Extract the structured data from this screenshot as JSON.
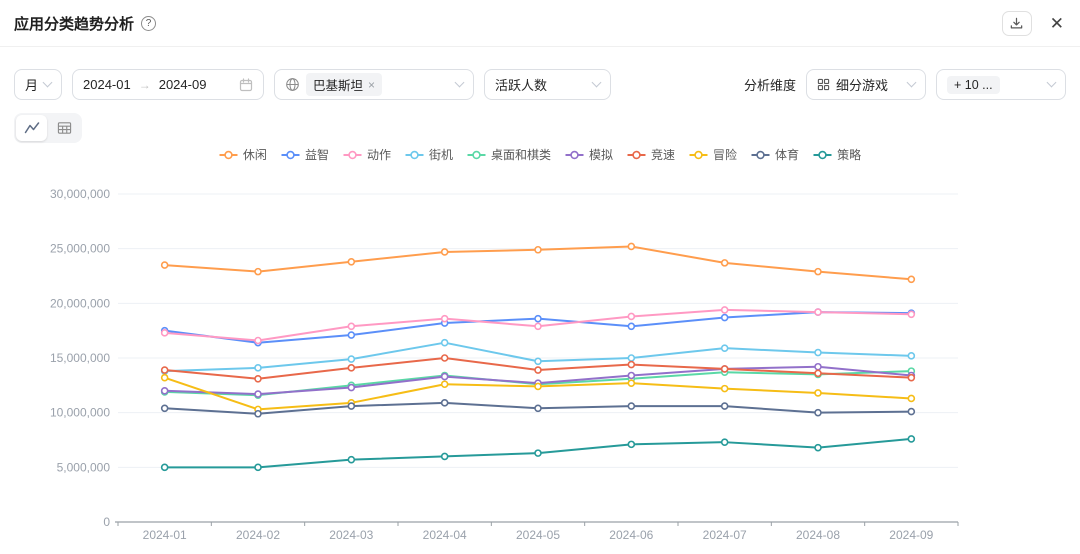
{
  "header": {
    "title": "应用分类趋势分析",
    "help_glyph": "?"
  },
  "icons": {
    "close": "✕",
    "arrow_right": "→",
    "tag_close": "×"
  },
  "filters": {
    "granularity": "月",
    "date_start": "2024-01",
    "date_end": "2024-09",
    "country_tag": "巴基斯坦",
    "metric": "活跃人数",
    "dimension_label": "分析维度",
    "dimension": "细分游戏",
    "selected_count": "+ 10 ..."
  },
  "chart_data": {
    "type": "line",
    "title": "",
    "xlabel": "",
    "ylabel": "",
    "grid": true,
    "legend_position": "top",
    "ylim": [
      0,
      30000000
    ],
    "y_tick_interval": 5000000,
    "categories": [
      "2024-01",
      "2024-02",
      "2024-03",
      "2024-04",
      "2024-05",
      "2024-06",
      "2024-07",
      "2024-08",
      "2024-09"
    ],
    "series": [
      {
        "name": "休闲",
        "color": "#FF9D4D",
        "values": [
          23500000,
          22900000,
          23800000,
          24700000,
          24900000,
          25200000,
          23700000,
          22900000,
          22200000
        ]
      },
      {
        "name": "益智",
        "color": "#5B8FF9",
        "values": [
          17500000,
          16400000,
          17100000,
          18200000,
          18600000,
          17900000,
          18700000,
          19200000,
          19100000
        ]
      },
      {
        "name": "动作",
        "color": "#FF99C3",
        "values": [
          17300000,
          16600000,
          17900000,
          18600000,
          17900000,
          18800000,
          19400000,
          19200000,
          19000000
        ]
      },
      {
        "name": "街机",
        "color": "#6DC8EC",
        "values": [
          13800000,
          14100000,
          14900000,
          16400000,
          14700000,
          15000000,
          15900000,
          15500000,
          15200000
        ]
      },
      {
        "name": "桌面和棋类",
        "color": "#5AD8A6",
        "values": [
          11900000,
          11600000,
          12500000,
          13400000,
          12600000,
          13100000,
          13700000,
          13500000,
          13800000
        ]
      },
      {
        "name": "模拟",
        "color": "#9270CA",
        "values": [
          12000000,
          11700000,
          12300000,
          13300000,
          12700000,
          13400000,
          14000000,
          14200000,
          13400000
        ]
      },
      {
        "name": "竞速",
        "color": "#E8684A",
        "values": [
          13900000,
          13100000,
          14100000,
          15000000,
          13900000,
          14400000,
          14000000,
          13600000,
          13200000
        ]
      },
      {
        "name": "冒险",
        "color": "#F6BD16",
        "values": [
          13200000,
          10300000,
          10900000,
          12600000,
          12400000,
          12700000,
          12200000,
          11800000,
          11300000
        ]
      },
      {
        "name": "体育",
        "color": "#5D7092",
        "values": [
          10400000,
          9900000,
          10600000,
          10900000,
          10400000,
          10600000,
          10600000,
          10000000,
          10100000
        ]
      },
      {
        "name": "策略",
        "color": "#269A99",
        "values": [
          5000000,
          5000000,
          5700000,
          6000000,
          6300000,
          7100000,
          7300000,
          6800000,
          7600000
        ]
      }
    ]
  }
}
